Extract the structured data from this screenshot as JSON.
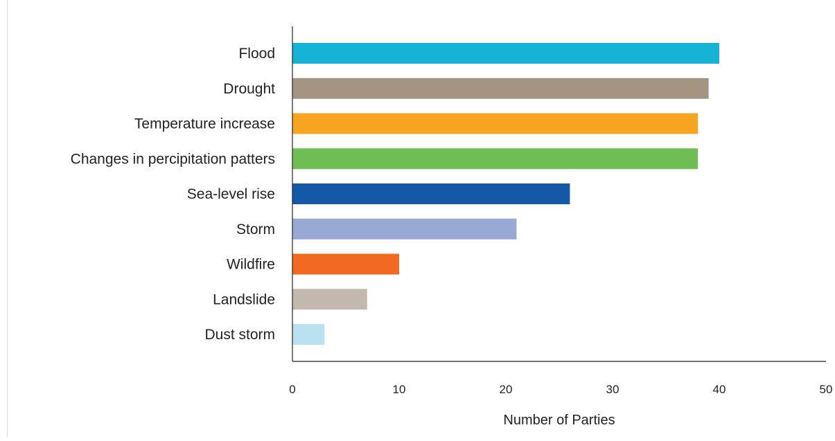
{
  "chart_data": {
    "type": "bar",
    "orientation": "horizontal",
    "categories": [
      "Flood",
      "Drought",
      "Temperature increase",
      "Changes in percipitation patters",
      "Sea-level rise",
      "Storm",
      "Wildfire",
      "Landslide",
      "Dust storm"
    ],
    "values": [
      40,
      39,
      38,
      38,
      26,
      21,
      10,
      7,
      3
    ],
    "colors": [
      "#17b3d6",
      "#a49482",
      "#f7a520",
      "#6fbe54",
      "#1459a8",
      "#99a9d5",
      "#f26a21",
      "#c2b8ad",
      "#b9e1f0"
    ],
    "xlabel": "Number of Parties",
    "ylabel": "",
    "xlim": [
      0,
      50
    ],
    "xticks": [
      0,
      10,
      20,
      30,
      40,
      50
    ],
    "grid": false,
    "legend": "none"
  }
}
